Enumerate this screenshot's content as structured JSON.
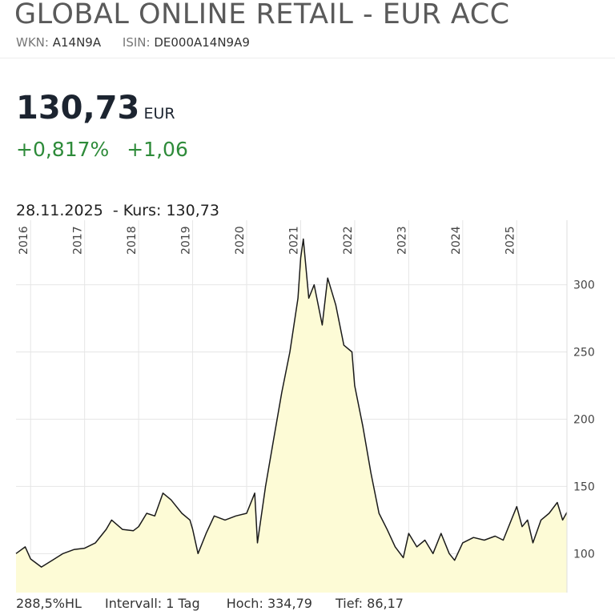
{
  "header": {
    "title": "GLOBAL ONLINE RETAIL - EUR ACC",
    "wkn_label": "WKN:",
    "wkn": "A14N9A",
    "isin_label": "ISIN:",
    "isin": "DE000A14N9A9",
    "price": "130,73",
    "currency": "EUR",
    "change_pct": "+0,817%",
    "change_abs": "+1,06",
    "date": "28.11.2025",
    "quote": "- Kurs: 130,73"
  },
  "footer": {
    "hl": "288,5%HL",
    "interval": "Intervall: 1 Tag",
    "high_label": "Hoch:",
    "high": "334,79",
    "low_label": "Tief:",
    "low": "86,17"
  },
  "chart_data": {
    "type": "area",
    "color": "#1a1a1a",
    "fill": "#fdfbd6",
    "grid": true,
    "x": [
      2015.73,
      2015.9,
      2016.0,
      2016.2,
      2016.4,
      2016.6,
      2016.8,
      2017.0,
      2017.2,
      2017.4,
      2017.5,
      2017.7,
      2017.9,
      2018.0,
      2018.15,
      2018.3,
      2018.45,
      2018.6,
      2018.8,
      2018.95,
      2019.0,
      2019.1,
      2019.25,
      2019.4,
      2019.6,
      2019.8,
      2020.0,
      2020.15,
      2020.2,
      2020.35,
      2020.5,
      2020.65,
      2020.8,
      2020.95,
      2021.0,
      2021.05,
      2021.15,
      2021.25,
      2021.4,
      2021.5,
      2021.65,
      2021.8,
      2021.95,
      2022.0,
      2022.15,
      2022.3,
      2022.45,
      2022.6,
      2022.75,
      2022.9,
      2023.0,
      2023.15,
      2023.3,
      2023.45,
      2023.6,
      2023.75,
      2023.85,
      2024.0,
      2024.2,
      2024.4,
      2024.6,
      2024.75,
      2024.9,
      2025.0,
      2025.1,
      2025.2,
      2025.3,
      2025.45,
      2025.6,
      2025.75,
      2025.85,
      2025.93
    ],
    "values": [
      100,
      105,
      96,
      90,
      95,
      100,
      103,
      104,
      108,
      118,
      125,
      118,
      117,
      120,
      130,
      128,
      145,
      140,
      130,
      125,
      118,
      100,
      115,
      128,
      125,
      128,
      130,
      145,
      108,
      150,
      185,
      220,
      250,
      290,
      320,
      334,
      290,
      300,
      270,
      305,
      285,
      255,
      250,
      225,
      195,
      160,
      130,
      118,
      105,
      97,
      115,
      105,
      110,
      100,
      115,
      100,
      95,
      108,
      112,
      110,
      113,
      110,
      125,
      135,
      120,
      125,
      108,
      125,
      130,
      138,
      125,
      130.73
    ],
    "xlim": [
      2015.73,
      2025.93
    ],
    "ylim": [
      71,
      348
    ],
    "xticks": [
      2016,
      2017,
      2018,
      2019,
      2020,
      2021,
      2022,
      2023,
      2024,
      2025
    ],
    "yticks": [
      100,
      150,
      200,
      250,
      300
    ]
  }
}
